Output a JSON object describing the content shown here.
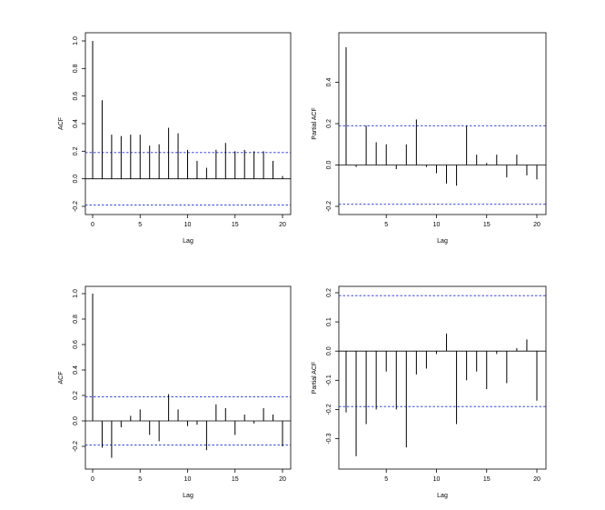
{
  "chart_data": [
    {
      "type": "bar",
      "variant": "acf-spike",
      "xlabel": "Lag",
      "ylabel": "ACF",
      "xlim": [
        0,
        20
      ],
      "ylim": [
        -0.2,
        1.0
      ],
      "x_ticks": [
        0,
        5,
        10,
        15,
        20
      ],
      "y_ticks": [
        1.0,
        0.8,
        0.6,
        0.4,
        0.2,
        0.0,
        -0.2
      ],
      "y_tick_labels": [
        "1.0",
        "0.8",
        "0.6",
        "0.4",
        "0.2",
        "0.0",
        "-0.2"
      ],
      "confidence_band": 0.19,
      "lags": [
        0,
        1,
        2,
        3,
        4,
        5,
        6,
        7,
        8,
        9,
        10,
        11,
        12,
        13,
        14,
        15,
        16,
        17,
        18,
        19,
        20
      ],
      "values": [
        1.0,
        0.57,
        0.32,
        0.31,
        0.32,
        0.32,
        0.24,
        0.25,
        0.37,
        0.33,
        0.21,
        0.13,
        0.08,
        0.21,
        0.26,
        0.2,
        0.21,
        0.2,
        0.2,
        0.13,
        0.02
      ]
    },
    {
      "type": "bar",
      "variant": "acf-spike",
      "xlabel": "Lag",
      "ylabel": "Partial ACF",
      "xlim": [
        1,
        20
      ],
      "ylim": [
        -0.2,
        0.6
      ],
      "x_ticks": [
        5,
        10,
        15,
        20
      ],
      "y_ticks": [
        0.4,
        0.2,
        0.0,
        -0.2
      ],
      "y_tick_labels": [
        "0.4",
        "0.2",
        "0.0",
        "-0.2"
      ],
      "confidence_band": 0.19,
      "lags": [
        1,
        2,
        3,
        4,
        5,
        6,
        7,
        8,
        9,
        10,
        11,
        12,
        13,
        14,
        15,
        16,
        17,
        18,
        19,
        20
      ],
      "values": [
        0.57,
        -0.01,
        0.19,
        0.11,
        0.1,
        -0.02,
        0.1,
        0.22,
        -0.01,
        -0.04,
        -0.09,
        -0.1,
        0.19,
        0.05,
        0.01,
        0.05,
        -0.06,
        0.05,
        -0.05,
        -0.07
      ]
    },
    {
      "type": "bar",
      "variant": "acf-spike",
      "xlabel": "Lag",
      "ylabel": "ACF",
      "xlim": [
        0,
        20
      ],
      "ylim": [
        -0.3,
        1.0
      ],
      "x_ticks": [
        0,
        5,
        10,
        15,
        20
      ],
      "y_ticks": [
        1.0,
        0.8,
        0.6,
        0.4,
        0.2,
        0.0,
        -0.2
      ],
      "y_tick_labels": [
        "1.0",
        "0.8",
        "0.6",
        "0.4",
        "0.2",
        "0.0",
        "-0.2"
      ],
      "confidence_band": 0.19,
      "lags": [
        0,
        1,
        2,
        3,
        4,
        5,
        6,
        7,
        8,
        9,
        10,
        11,
        12,
        13,
        14,
        15,
        16,
        17,
        18,
        19,
        20
      ],
      "values": [
        1.0,
        -0.21,
        -0.29,
        -0.05,
        0.04,
        0.09,
        -0.11,
        -0.16,
        0.21,
        0.09,
        -0.04,
        -0.03,
        -0.23,
        0.13,
        0.1,
        -0.11,
        0.05,
        -0.02,
        0.1,
        0.05,
        -0.2
      ]
    },
    {
      "type": "bar",
      "variant": "acf-spike",
      "xlabel": "Lag",
      "ylabel": "Partial ACF",
      "xlim": [
        1,
        20
      ],
      "ylim": [
        -0.37,
        0.2
      ],
      "x_ticks": [
        5,
        10,
        15,
        20
      ],
      "y_ticks": [
        0.2,
        0.1,
        0.0,
        -0.1,
        -0.2,
        -0.3
      ],
      "y_tick_labels": [
        "0.2",
        "0.1",
        "0.0",
        "-0.1",
        "-0.2",
        "-0.3"
      ],
      "confidence_band": 0.19,
      "lags": [
        1,
        2,
        3,
        4,
        5,
        6,
        7,
        8,
        9,
        10,
        11,
        12,
        13,
        14,
        15,
        16,
        17,
        18,
        19,
        20
      ],
      "values": [
        -0.21,
        -0.36,
        -0.25,
        -0.2,
        -0.07,
        -0.2,
        -0.33,
        -0.08,
        -0.06,
        -0.01,
        0.06,
        -0.25,
        -0.1,
        -0.07,
        -0.13,
        -0.01,
        -0.11,
        0.01,
        0.04,
        -0.17
      ]
    }
  ],
  "colors": {
    "axis": "#000000",
    "spike": "#000000",
    "band": "#1f2fd9"
  }
}
